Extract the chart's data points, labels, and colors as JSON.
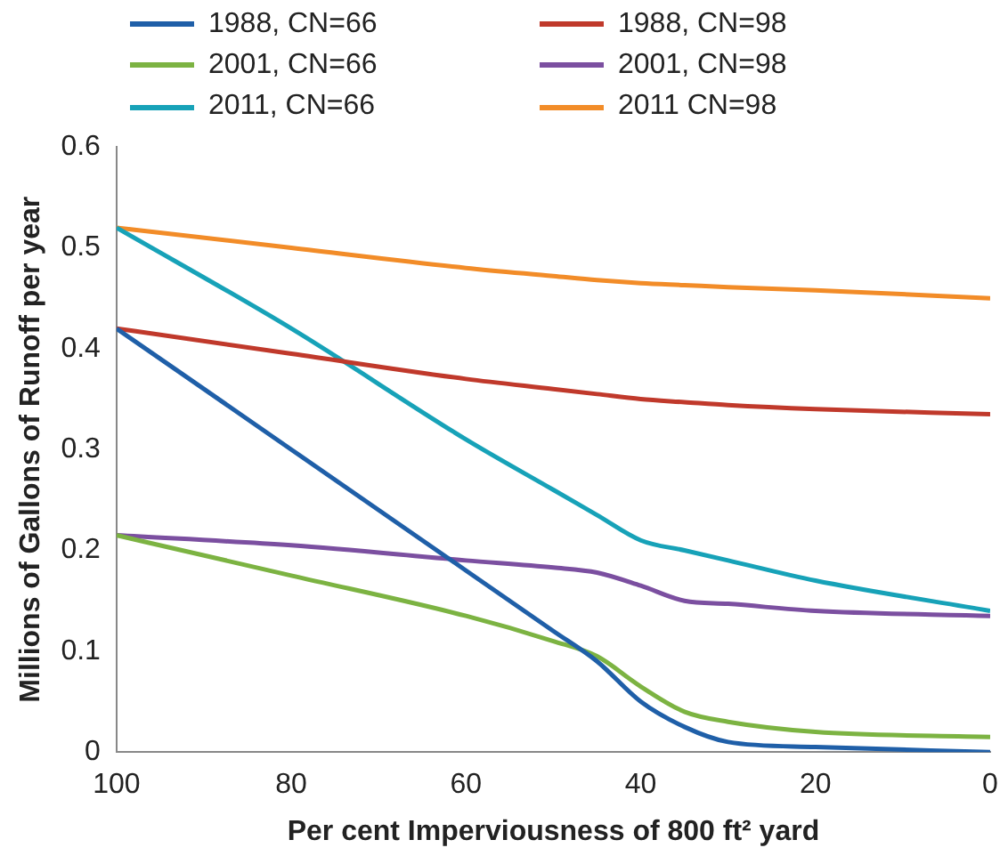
{
  "chart_data": {
    "type": "line",
    "xlabel": "Per cent Imperviousness of 800 ft² yard",
    "ylabel": "Millions of Gallons of Runoff per year",
    "x": [
      100,
      80,
      60,
      50,
      45,
      40,
      35,
      30,
      20,
      0
    ],
    "series": [
      {
        "name": "1988, CN=66",
        "color": "#1f5fa8",
        "values": [
          0.42,
          0.3,
          0.18,
          0.12,
          0.09,
          0.05,
          0.025,
          0.01,
          0.005,
          0
        ]
      },
      {
        "name": "1988, CN=98",
        "color": "#c0392b",
        "values": [
          0.42,
          0.395,
          0.37,
          0.36,
          0.355,
          0.35,
          0.347,
          0.344,
          0.34,
          0.335
        ]
      },
      {
        "name": "2001, CN=66",
        "color": "#7cb342",
        "values": [
          0.215,
          0.175,
          0.135,
          0.11,
          0.095,
          0.065,
          0.04,
          0.03,
          0.02,
          0.015
        ]
      },
      {
        "name": "2001, CN=98",
        "color": "#7b4fa0",
        "values": [
          0.215,
          0.205,
          0.19,
          0.183,
          0.178,
          0.165,
          0.15,
          0.147,
          0.14,
          0.135
        ]
      },
      {
        "name": "2011, CN=66",
        "color": "#17a2b8",
        "values": [
          0.52,
          0.42,
          0.31,
          0.26,
          0.235,
          0.21,
          0.2,
          0.19,
          0.17,
          0.14
        ]
      },
      {
        "name": "2011 CN=98",
        "color": "#f28c28",
        "values": [
          0.52,
          0.5,
          0.48,
          0.472,
          0.468,
          0.465,
          0.463,
          0.461,
          0.458,
          0.45
        ]
      }
    ],
    "xlim": [
      100,
      0
    ],
    "xticks": [
      100,
      80,
      60,
      40,
      20,
      0
    ],
    "ylim": [
      0,
      0.6
    ],
    "yticks": [
      0,
      0.1,
      0.2,
      0.3,
      0.4,
      0.5,
      0.6
    ],
    "grid": false,
    "legend": "top",
    "marker": "none",
    "line_style": "solid"
  }
}
